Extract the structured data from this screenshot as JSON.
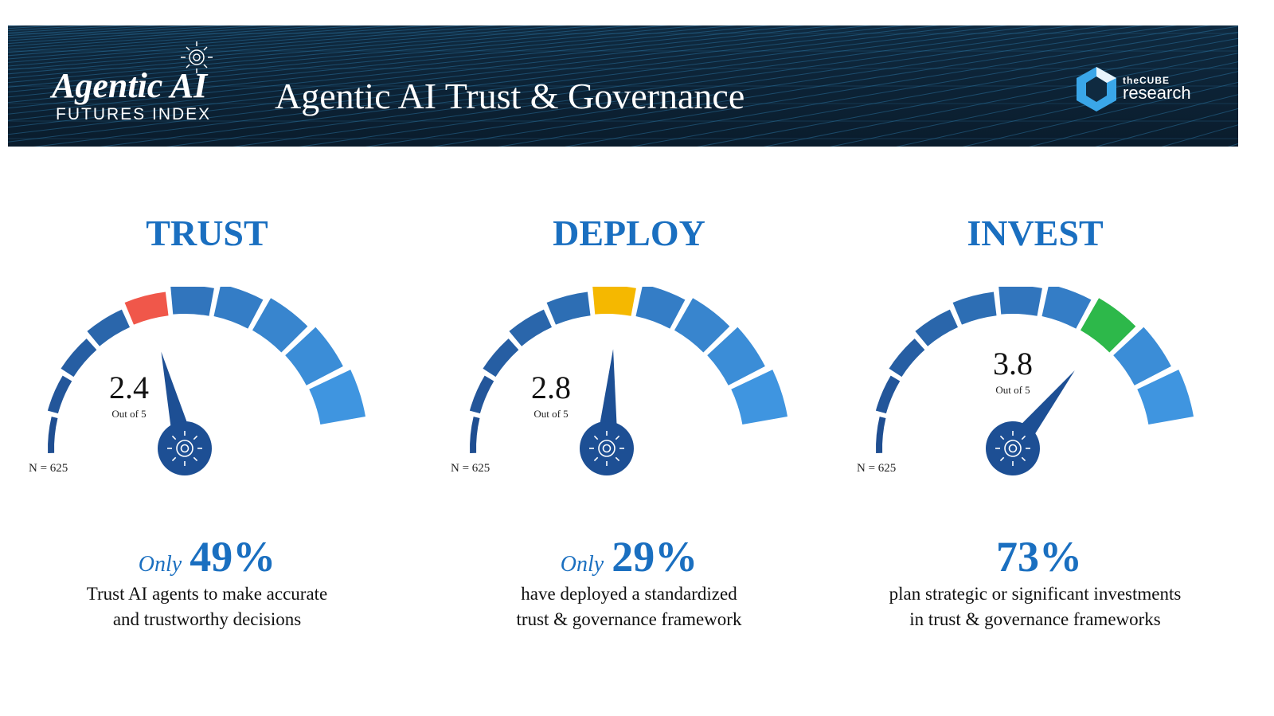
{
  "header": {
    "logo_title": "Agentic AI",
    "logo_subtitle": "FUTURES INDEX",
    "title": "Agentic AI Trust & Governance",
    "brand_top": "theCUBE",
    "brand_bottom": "research"
  },
  "colors": {
    "heading": "#1a6fc0",
    "segment_dark": "#1f4e91",
    "segment_light": "#3f95e0",
    "trust": "#f0574a",
    "deploy": "#f5b800",
    "invest": "#2db84a",
    "needle": "#1d4f94"
  },
  "chart_data": [
    {
      "type": "gauge",
      "title": "TRUST",
      "value": 2.4,
      "max": 5,
      "value_label": "2.4",
      "scale_label": "Out of 5",
      "sample": "N = 625",
      "segments": 10,
      "highlight_color": "#f0574a"
    },
    {
      "type": "gauge",
      "title": "DEPLOY",
      "value": 2.8,
      "max": 5,
      "value_label": "2.8",
      "scale_label": "Out of 5",
      "sample": "N = 625",
      "segments": 10,
      "highlight_color": "#f5b800"
    },
    {
      "type": "gauge",
      "title": "INVEST",
      "value": 3.8,
      "max": 5,
      "value_label": "3.8",
      "scale_label": "Out of 5",
      "sample": "N = 625",
      "segments": 10,
      "highlight_color": "#2db84a"
    }
  ],
  "panels": [
    {
      "heading": "TRUST",
      "prefix": "Only",
      "percent": "49%",
      "line1": "Trust AI agents to make accurate",
      "line2": "and trustworthy decisions"
    },
    {
      "heading": "DEPLOY",
      "prefix": "Only",
      "percent": "29%",
      "line1": "have deployed a standardized",
      "line2": "trust & governance framework"
    },
    {
      "heading": "INVEST",
      "prefix": "",
      "percent": "73%",
      "line1": "plan strategic or significant investments",
      "line2": "in trust & governance frameworks"
    }
  ]
}
